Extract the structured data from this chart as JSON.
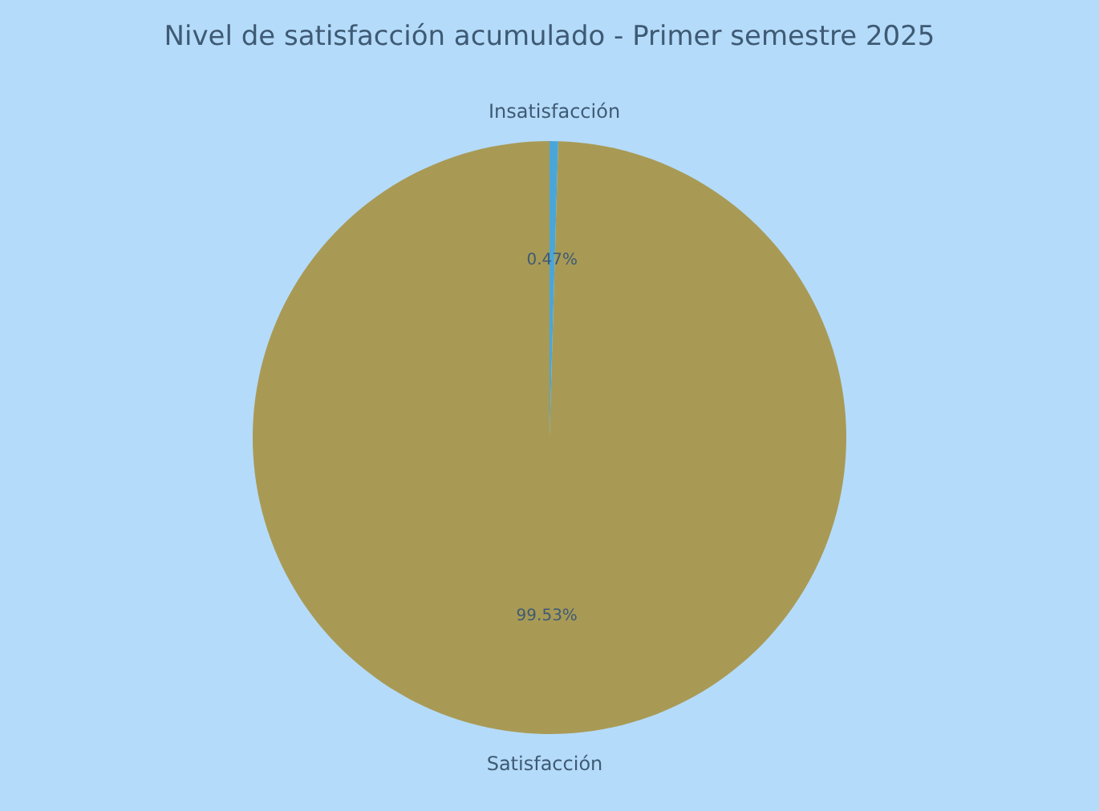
{
  "chart_data": {
    "type": "pie",
    "title": "Nivel de satisfacción acumulado - Primer semestre 2025",
    "categories": [
      "Insatisfacción",
      "Satisfacción"
    ],
    "values": [
      0.47,
      99.53
    ],
    "colors": [
      "#4ba6d8",
      "#a89a55"
    ],
    "value_labels": [
      "0.47%",
      "99.53%"
    ]
  }
}
